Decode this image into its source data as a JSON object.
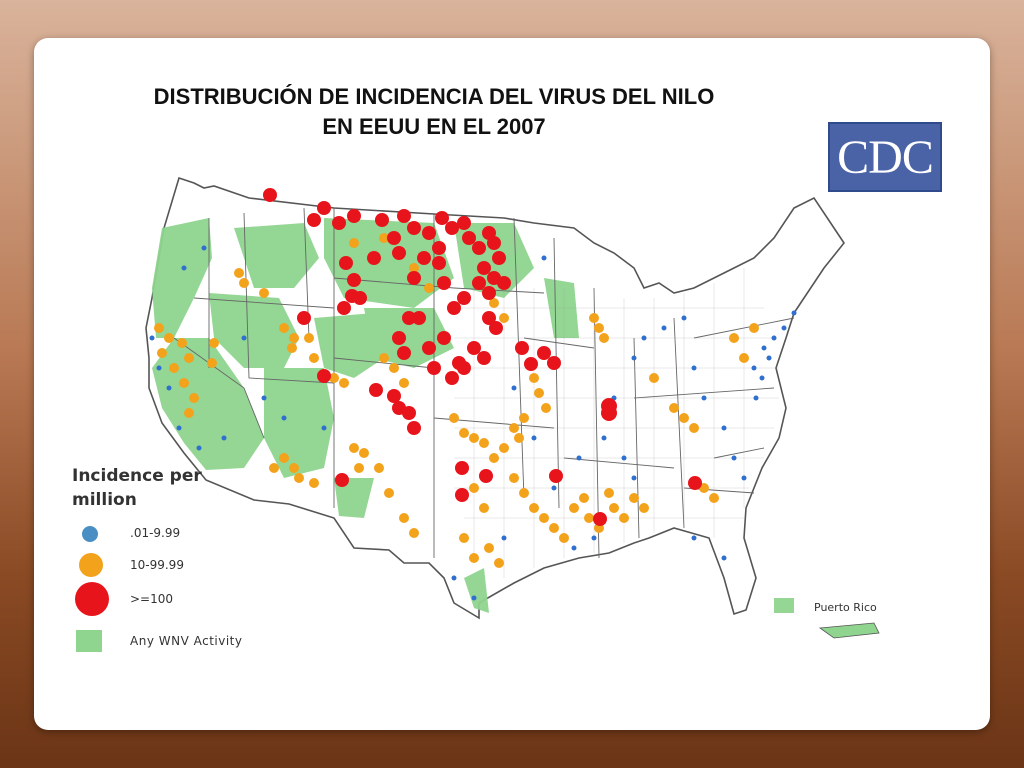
{
  "slide": {
    "title_line1": "DISTRIBUCIÓN DE INCIDENCIA DEL VIRUS DEL NILO",
    "title_line2": "EN EEUU EN EL 2007",
    "logo_text": "CDC",
    "puerto_rico_label": "Puerto Rico"
  },
  "legend": {
    "title": "Incidence per million",
    "items": [
      {
        "label": ".01-9.99",
        "color": "#4a8fc4",
        "symbol": "small-dot"
      },
      {
        "label": "10-99.99",
        "color": "#f3a21b",
        "symbol": "medium-dot"
      },
      {
        "label": ">=100",
        "color": "#e8141b",
        "symbol": "large-dot"
      },
      {
        "label": "Any WNV Activity",
        "color": "#8fd48f",
        "symbol": "square"
      }
    ]
  },
  "colors": {
    "land": "#ffffff",
    "wnv_activity": "#8fd48f",
    "borders": "#555555",
    "low": "#2f6fd0",
    "medium": "#f3a21b",
    "high": "#e8141b"
  }
}
